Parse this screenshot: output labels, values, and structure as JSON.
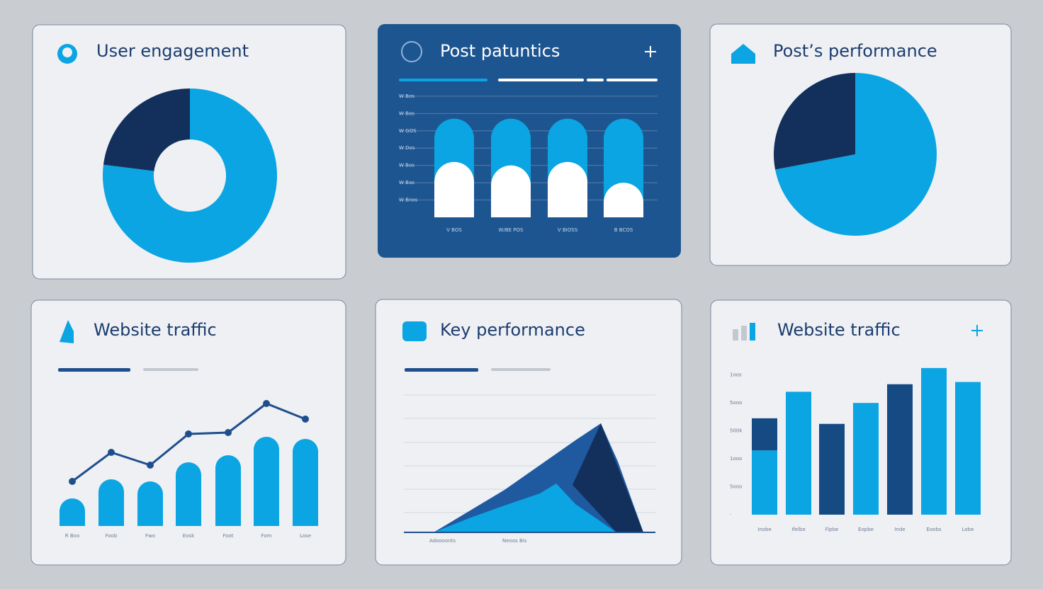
{
  "chart_data": [
    {
      "type": "donut",
      "title": "User engagement",
      "values": [
        77,
        23
      ],
      "colors": [
        "#0aa5e2",
        "#13305c"
      ]
    },
    {
      "type": "bar",
      "title": "Post patuntics",
      "stacked": true,
      "rounded": true,
      "categories": [
        "V BOS",
        "W/BE POS",
        "V BIOSS",
        "B BCOS"
      ],
      "series": [
        {
          "color": "#ffffff",
          "values": [
            3.2,
            3.0,
            3.2,
            2.0
          ]
        },
        {
          "color": "#0aa5e2",
          "values": [
            2.5,
            2.7,
            2.5,
            3.7
          ]
        }
      ],
      "ylim": [
        0,
        7.2
      ],
      "yticks": [
        {
          "value": 1,
          "label": "W Bnos"
        },
        {
          "value": 2,
          "label": "W Bas"
        },
        {
          "value": 3,
          "label": "W Bos"
        },
        {
          "value": 4,
          "label": "W Dos"
        },
        {
          "value": 5,
          "label": "W GOS"
        },
        {
          "value": 6,
          "label": "W Bos"
        },
        {
          "value": 7,
          "label": "W Bos"
        }
      ],
      "grid": true
    },
    {
      "type": "pie",
      "title": "Post’s performance",
      "values": [
        72,
        28
      ],
      "colors": [
        "#0aa5e2",
        "#13305c"
      ]
    },
    {
      "type": "combo",
      "title": "Website traffic",
      "categories": [
        "R Boo",
        "Foob",
        "Fwo",
        "Eosk",
        "Foot",
        "Fom",
        "Lose"
      ],
      "series": [
        {
          "type": "bar",
          "color": "#0aa5e2",
          "values": [
            39,
            66,
            63,
            90,
            100,
            126,
            123
          ]
        },
        {
          "type": "line",
          "color": "#1f4e8c",
          "values": [
            63,
            104,
            86,
            130,
            132,
            173,
            151
          ]
        }
      ]
    },
    {
      "type": "area",
      "title": "Key performance",
      "categories": [
        "Adoooonts",
        "Neoos Bis"
      ],
      "series": [
        {
          "color": "#1f5aa0",
          "x": [
            0,
            50,
            100,
            150,
            200,
            236,
            260,
            296
          ],
          "values": [
            0,
            30,
            60,
            95,
            130,
            154,
            100,
            0
          ]
        },
        {
          "color": "#0aa5e2",
          "x": [
            0,
            50,
            100,
            150,
            173,
            200,
            258
          ],
          "values": [
            0,
            20,
            38,
            55,
            69,
            40,
            0
          ]
        }
      ]
    },
    {
      "type": "bar",
      "title": "Website traffic",
      "stacked": true,
      "rounded": false,
      "categories": [
        "Inobe",
        "Ifelbe",
        "Fipbe",
        "Eopbe",
        "Inde",
        "Eoobs",
        "Lobe"
      ],
      "series": [
        {
          "color": "#0aa5e2",
          "values": [
            2.3,
            4.4,
            null,
            4.0,
            null,
            5.25,
            4.75
          ]
        },
        {
          "color": "#164a82",
          "values": [
            1.15,
            null,
            3.25,
            null,
            4.67,
            null,
            null
          ]
        }
      ],
      "ylim": [
        0,
        5.5
      ],
      "yticks": [
        {
          "value": 0,
          "label": "·"
        },
        {
          "value": 1,
          "label": "5ooo"
        },
        {
          "value": 2,
          "label": "1ooo"
        },
        {
          "value": 3,
          "label": "500k"
        },
        {
          "value": 4,
          "label": "5ooo"
        },
        {
          "value": 5,
          "label": "1oos"
        }
      ]
    }
  ]
}
